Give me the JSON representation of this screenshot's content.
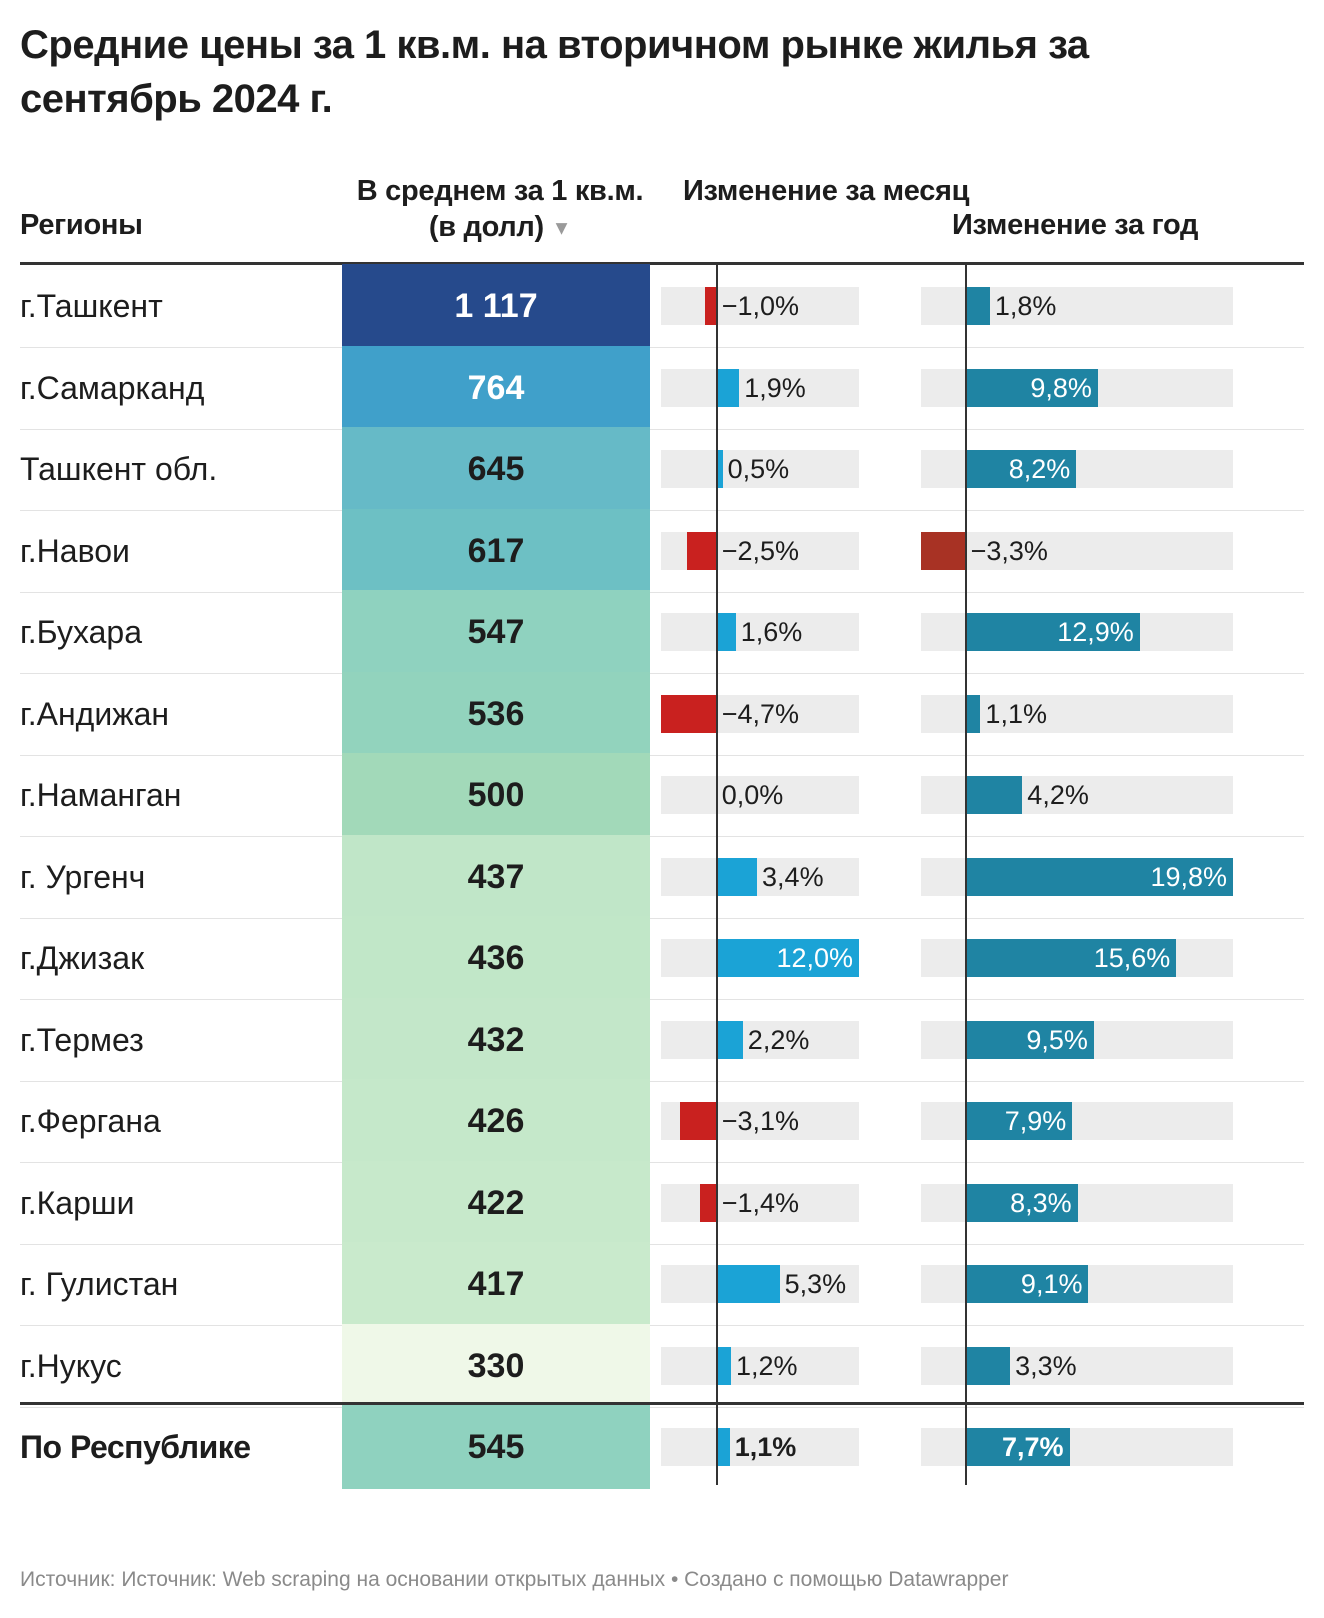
{
  "title": "Средние цены за 1 кв.м. на вторичном рынке жилья за сентябрь 2024 г.",
  "columns": {
    "region": "Регионы",
    "avg": "В среднем за 1 кв.м. (в долл)",
    "sort_icon": "▼",
    "month": "Изменение за месяц",
    "year": "Изменение за год"
  },
  "colors": {
    "positive_month": "#1ba3d6",
    "negative_month": "#c9211f",
    "positive_year": "#1f84a3",
    "negative_year": "#a83224",
    "bar_background": "#ececec"
  },
  "chart_data": {
    "type": "table",
    "rows": [
      {
        "region": "г.Ташкент",
        "avg": 1117,
        "avg_label": "1 117",
        "month": -1.0,
        "month_label": "−1,0%",
        "year": 1.8,
        "year_label": "1,8%",
        "bg": "#264a8c",
        "fg": "#ffffff"
      },
      {
        "region": "г.Самарканд",
        "avg": 764,
        "avg_label": "764",
        "month": 1.9,
        "month_label": "1,9%",
        "year": 9.8,
        "year_label": "9,8%",
        "bg": "#40a0ca",
        "fg": "#ffffff"
      },
      {
        "region": "Ташкент обл.",
        "avg": 645,
        "avg_label": "645",
        "month": 0.5,
        "month_label": "0,5%",
        "year": 8.2,
        "year_label": "8,2%",
        "bg": "#66bac7",
        "fg": "#1d1d1d"
      },
      {
        "region": "г.Навои",
        "avg": 617,
        "avg_label": "617",
        "month": -2.5,
        "month_label": "−2,5%",
        "year": -3.3,
        "year_label": "−3,3%",
        "bg": "#6dc0c4",
        "fg": "#1d1d1d"
      },
      {
        "region": "г.Бухара",
        "avg": 547,
        "avg_label": "547",
        "month": 1.6,
        "month_label": "1,6%",
        "year": 12.9,
        "year_label": "12,9%",
        "bg": "#8fd2bf",
        "fg": "#1d1d1d"
      },
      {
        "region": "г.Андижан",
        "avg": 536,
        "avg_label": "536",
        "month": -4.7,
        "month_label": "−4,7%",
        "year": 1.1,
        "year_label": "1,1%",
        "bg": "#92d3bd",
        "fg": "#1d1d1d"
      },
      {
        "region": "г.Наманган",
        "avg": 500,
        "avg_label": "500",
        "month": 0.0,
        "month_label": "0,0%",
        "year": 4.2,
        "year_label": "4,2%",
        "bg": "#a2d9b9",
        "fg": "#1d1d1d"
      },
      {
        "region": "г. Ургенч",
        "avg": 437,
        "avg_label": "437",
        "month": 3.4,
        "month_label": "3,4%",
        "year": 19.8,
        "year_label": "19,8%",
        "bg": "#c0e6c8",
        "fg": "#1d1d1d"
      },
      {
        "region": "г.Джизак",
        "avg": 436,
        "avg_label": "436",
        "month": 12.0,
        "month_label": "12,0%",
        "year": 15.6,
        "year_label": "15,6%",
        "bg": "#c1e7c8",
        "fg": "#1d1d1d"
      },
      {
        "region": "г.Термез",
        "avg": 432,
        "avg_label": "432",
        "month": 2.2,
        "month_label": "2,2%",
        "year": 9.5,
        "year_label": "9,5%",
        "bg": "#c3e7c9",
        "fg": "#1d1d1d"
      },
      {
        "region": "г.Фергана",
        "avg": 426,
        "avg_label": "426",
        "month": -3.1,
        "month_label": "−3,1%",
        "year": 7.9,
        "year_label": "7,9%",
        "bg": "#c5e8ca",
        "fg": "#1d1d1d"
      },
      {
        "region": "г.Карши",
        "avg": 422,
        "avg_label": "422",
        "month": -1.4,
        "month_label": "−1,4%",
        "year": 8.3,
        "year_label": "8,3%",
        "bg": "#c7e9cb",
        "fg": "#1d1d1d"
      },
      {
        "region": "г. Гулистан",
        "avg": 417,
        "avg_label": "417",
        "month": 5.3,
        "month_label": "5,3%",
        "year": 9.1,
        "year_label": "9,1%",
        "bg": "#c9eacc",
        "fg": "#1d1d1d"
      },
      {
        "region": "г.Нукус",
        "avg": 330,
        "avg_label": "330",
        "month": 1.2,
        "month_label": "1,2%",
        "year": 3.3,
        "year_label": "3,3%",
        "bg": "#eff8e8",
        "fg": "#1d1d1d"
      }
    ],
    "total": {
      "region": "По Республике",
      "avg": 545,
      "avg_label": "545",
      "month": 1.1,
      "month_label": "1,1%",
      "year": 7.7,
      "year_label": "7,7%",
      "bg": "#8fd2bf",
      "fg": "#1d1d1d"
    },
    "month_range": [
      -4.7,
      12.0
    ],
    "year_range": [
      -3.3,
      19.8
    ]
  },
  "footer": "Источник: Источник: Web scraping на основании открытых данных • Создано с помощью Datawrapper"
}
